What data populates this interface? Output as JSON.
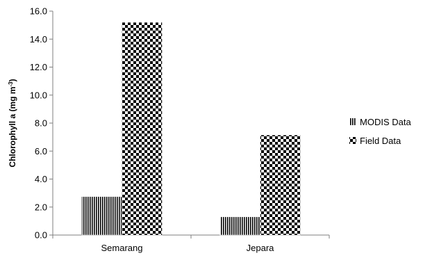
{
  "chart_data": {
    "type": "bar",
    "categories": [
      "Semarang",
      "Jepara"
    ],
    "series": [
      {
        "name": "MODIS Data",
        "values": [
          2.75,
          1.3
        ],
        "pattern": "vertical-stripes"
      },
      {
        "name": "Field Data",
        "values": [
          15.2,
          7.15
        ],
        "pattern": "checkerboard"
      }
    ],
    "ylabel_main": "Chlorophyll a (mg m",
    "ylabel_sup": "-3",
    "ylabel_close": ")",
    "ylim": [
      0,
      16
    ],
    "yticks": [
      "0.0",
      "2.0",
      "4.0",
      "6.0",
      "8.0",
      "10.0",
      "12.0",
      "14.0",
      "16.0"
    ],
    "grid": false,
    "legend_position": "right"
  }
}
